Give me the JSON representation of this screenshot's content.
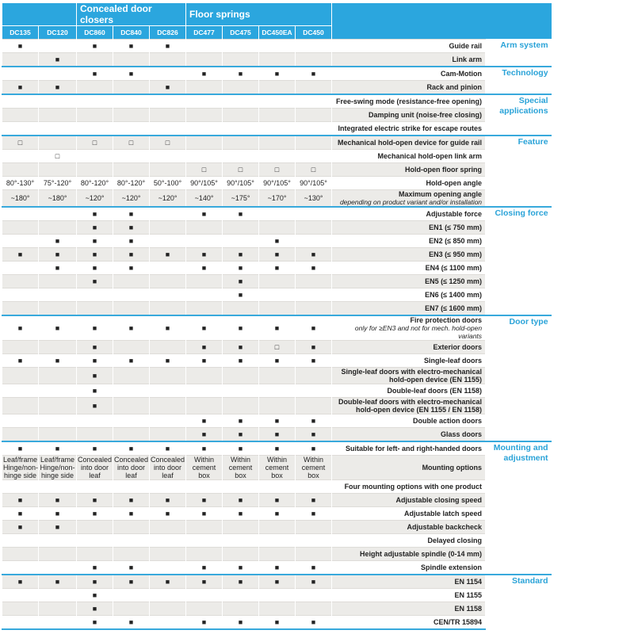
{
  "header": {
    "groups": [
      {
        "label": null,
        "columns": [
          "DC135",
          "DC120"
        ]
      },
      {
        "label": "Concealed door closers",
        "columns": [
          "DC860",
          "DC840",
          "DC826"
        ]
      },
      {
        "label": "Floor springs",
        "columns": [
          "DC477",
          "DC475",
          "DC450EA",
          "DC450"
        ]
      }
    ]
  },
  "sections": [
    {
      "category": "Arm system",
      "rows": [
        {
          "label": "Guide rail",
          "cells": [
            "■",
            null,
            "■",
            "■",
            "■",
            null,
            null,
            null,
            null
          ]
        },
        {
          "label": "Link arm",
          "cells": [
            null,
            "■",
            null,
            null,
            null,
            null,
            null,
            null,
            null
          ]
        }
      ]
    },
    {
      "category": "Technology",
      "rows": [
        {
          "label": "Cam-Motion",
          "cells": [
            null,
            null,
            "■",
            "■",
            null,
            "■",
            "■",
            "■",
            "■"
          ]
        },
        {
          "label": "Rack and pinion",
          "cells": [
            "■",
            "■",
            null,
            null,
            "■",
            null,
            null,
            null,
            null
          ]
        }
      ]
    },
    {
      "category": "Special applications",
      "rows": [
        {
          "label": "Free-swing mode (resistance-free opening)",
          "cells": [
            null,
            null,
            null,
            null,
            null,
            null,
            null,
            null,
            null
          ]
        },
        {
          "label": "Damping unit (noise-free closing)",
          "cells": [
            null,
            null,
            null,
            null,
            null,
            null,
            null,
            null,
            null
          ]
        },
        {
          "label": "Integrated electric strike for escape routes",
          "cells": [
            null,
            null,
            null,
            null,
            null,
            null,
            null,
            null,
            null
          ]
        }
      ]
    },
    {
      "category": "Feature",
      "rows": [
        {
          "label": "Mechanical hold-open device for guide rail",
          "cells": [
            "□",
            null,
            "□",
            "□",
            "□",
            null,
            null,
            null,
            null
          ]
        },
        {
          "label": "Mechanical hold-open link arm",
          "cells": [
            null,
            "□",
            null,
            null,
            null,
            null,
            null,
            null,
            null
          ]
        },
        {
          "label": "Hold-open floor spring",
          "cells": [
            null,
            null,
            null,
            null,
            null,
            "□",
            "□",
            "□",
            "□"
          ]
        },
        {
          "label": "Hold-open angle",
          "cells": [
            "80°-130°",
            "75°-120°",
            "80°-120°",
            "80°-120°",
            "50°-100°",
            "90°/105°",
            "90°/105°",
            "90°/105°",
            "90°/105°"
          ]
        },
        {
          "label": "Maximum opening angle",
          "note": "depending on product variant and/or installation",
          "cells": [
            "~180°",
            "~180°",
            "~120°",
            "~120°",
            "~120°",
            "~140°",
            "~175°",
            "~170°",
            "~130°"
          ]
        }
      ]
    },
    {
      "category": "Closing force",
      "rows": [
        {
          "label": "Adjustable force",
          "cells": [
            null,
            null,
            "■",
            "■",
            null,
            "■",
            "■",
            null,
            null
          ]
        },
        {
          "label": "EN1 (≤ 750 mm)",
          "cells": [
            null,
            null,
            "■",
            "■",
            null,
            null,
            null,
            null,
            null
          ]
        },
        {
          "label": "EN2 (≤ 850 mm)",
          "cells": [
            null,
            "■",
            "■",
            "■",
            null,
            null,
            null,
            "■",
            null
          ]
        },
        {
          "label": "EN3 (≤ 950 mm)",
          "cells": [
            "■",
            "■",
            "■",
            "■",
            "■",
            "■",
            "■",
            "■",
            "■"
          ]
        },
        {
          "label": "EN4 (≤ 1100 mm)",
          "cells": [
            null,
            "■",
            "■",
            "■",
            null,
            "■",
            "■",
            "■",
            "■"
          ]
        },
        {
          "label": "EN5 (≤ 1250 mm)",
          "cells": [
            null,
            null,
            "■",
            null,
            null,
            null,
            "■",
            null,
            null
          ]
        },
        {
          "label": "EN6 (≤ 1400 mm)",
          "cells": [
            null,
            null,
            null,
            null,
            null,
            null,
            "■",
            null,
            null
          ]
        },
        {
          "label": "EN7 (≤ 1600 mm)",
          "cells": [
            null,
            null,
            null,
            null,
            null,
            null,
            null,
            null,
            null
          ]
        }
      ]
    },
    {
      "category": "Door type",
      "rows": [
        {
          "label": "Fire protection doors",
          "note": "only for ≥EN3 and not for mech. hold-open variants",
          "cells": [
            "■",
            "■",
            "■",
            "■",
            "■",
            "■",
            "■",
            "■",
            "■"
          ]
        },
        {
          "label": "Exterior doors",
          "cells": [
            null,
            null,
            "■",
            null,
            null,
            "■",
            "■",
            "□",
            "■"
          ]
        },
        {
          "label": "Single-leaf doors",
          "cells": [
            "■",
            "■",
            "■",
            "■",
            "■",
            "■",
            "■",
            "■",
            "■"
          ]
        },
        {
          "label": "Single-leaf doors with electro-mechanical hold-open device (EN 1155)",
          "cells": [
            null,
            null,
            "■",
            null,
            null,
            null,
            null,
            null,
            null
          ]
        },
        {
          "label": "Double-leaf doors (EN 1158)",
          "cells": [
            null,
            null,
            "■",
            null,
            null,
            null,
            null,
            null,
            null
          ]
        },
        {
          "label": "Double-leaf doors with electro-mechanical hold-open device (EN 1155 / EN 1158)",
          "cells": [
            null,
            null,
            "■",
            null,
            null,
            null,
            null,
            null,
            null
          ]
        },
        {
          "label": "Double action doors",
          "cells": [
            null,
            null,
            null,
            null,
            null,
            "■",
            "■",
            "■",
            "■"
          ]
        },
        {
          "label": "Glass doors",
          "cells": [
            null,
            null,
            null,
            null,
            null,
            "■",
            "■",
            "■",
            "■"
          ]
        }
      ]
    },
    {
      "category": "Mounting and adjustment",
      "rows": [
        {
          "label": "Suitable for left- and right-handed doors",
          "cells": [
            "■",
            "■",
            "■",
            "■",
            "■",
            "■",
            "■",
            "■",
            "■"
          ]
        },
        {
          "label": "Mounting options",
          "cells": [
            "Leaf/frame Hinge/non-hinge side",
            "Leaf/frame Hinge/non-hinge side",
            "Concealed into door leaf",
            "Concealed into door leaf",
            "Concealed into door leaf",
            "Within cement box",
            "Within cement box",
            "Within cement box",
            "Within cement box"
          ]
        },
        {
          "label": "Four mounting options with one product",
          "cells": [
            null,
            null,
            null,
            null,
            null,
            null,
            null,
            null,
            null
          ]
        },
        {
          "label": "Adjustable closing speed",
          "cells": [
            "■",
            "■",
            "■",
            "■",
            "■",
            "■",
            "■",
            "■",
            "■"
          ]
        },
        {
          "label": "Adjustable latch speed",
          "cells": [
            "■",
            "■",
            "■",
            "■",
            "■",
            "■",
            "■",
            "■",
            "■"
          ]
        },
        {
          "label": "Adjustable backcheck",
          "cells": [
            "■",
            "■",
            null,
            null,
            null,
            null,
            null,
            null,
            null
          ]
        },
        {
          "label": "Delayed closing",
          "cells": [
            null,
            null,
            null,
            null,
            null,
            null,
            null,
            null,
            null
          ]
        },
        {
          "label": "Height adjustable spindle (0-14 mm)",
          "cells": [
            null,
            null,
            null,
            null,
            null,
            null,
            null,
            null,
            null
          ]
        },
        {
          "label": "Spindle extension",
          "cells": [
            null,
            null,
            "■",
            "■",
            null,
            "■",
            "■",
            "■",
            "■"
          ]
        }
      ]
    },
    {
      "category": "Standard",
      "rows": [
        {
          "label": "EN 1154",
          "cells": [
            "■",
            "■",
            "■",
            "■",
            "■",
            "■",
            "■",
            "■",
            "■"
          ]
        },
        {
          "label": "EN 1155",
          "cells": [
            null,
            null,
            "■",
            null,
            null,
            null,
            null,
            null,
            null
          ]
        },
        {
          "label": "EN 1158",
          "cells": [
            null,
            null,
            "■",
            null,
            null,
            null,
            null,
            null,
            null
          ]
        },
        {
          "label": "CEN/TR 15894",
          "cells": [
            null,
            null,
            "■",
            "■",
            null,
            "■",
            "■",
            "■",
            "■"
          ]
        }
      ]
    }
  ]
}
